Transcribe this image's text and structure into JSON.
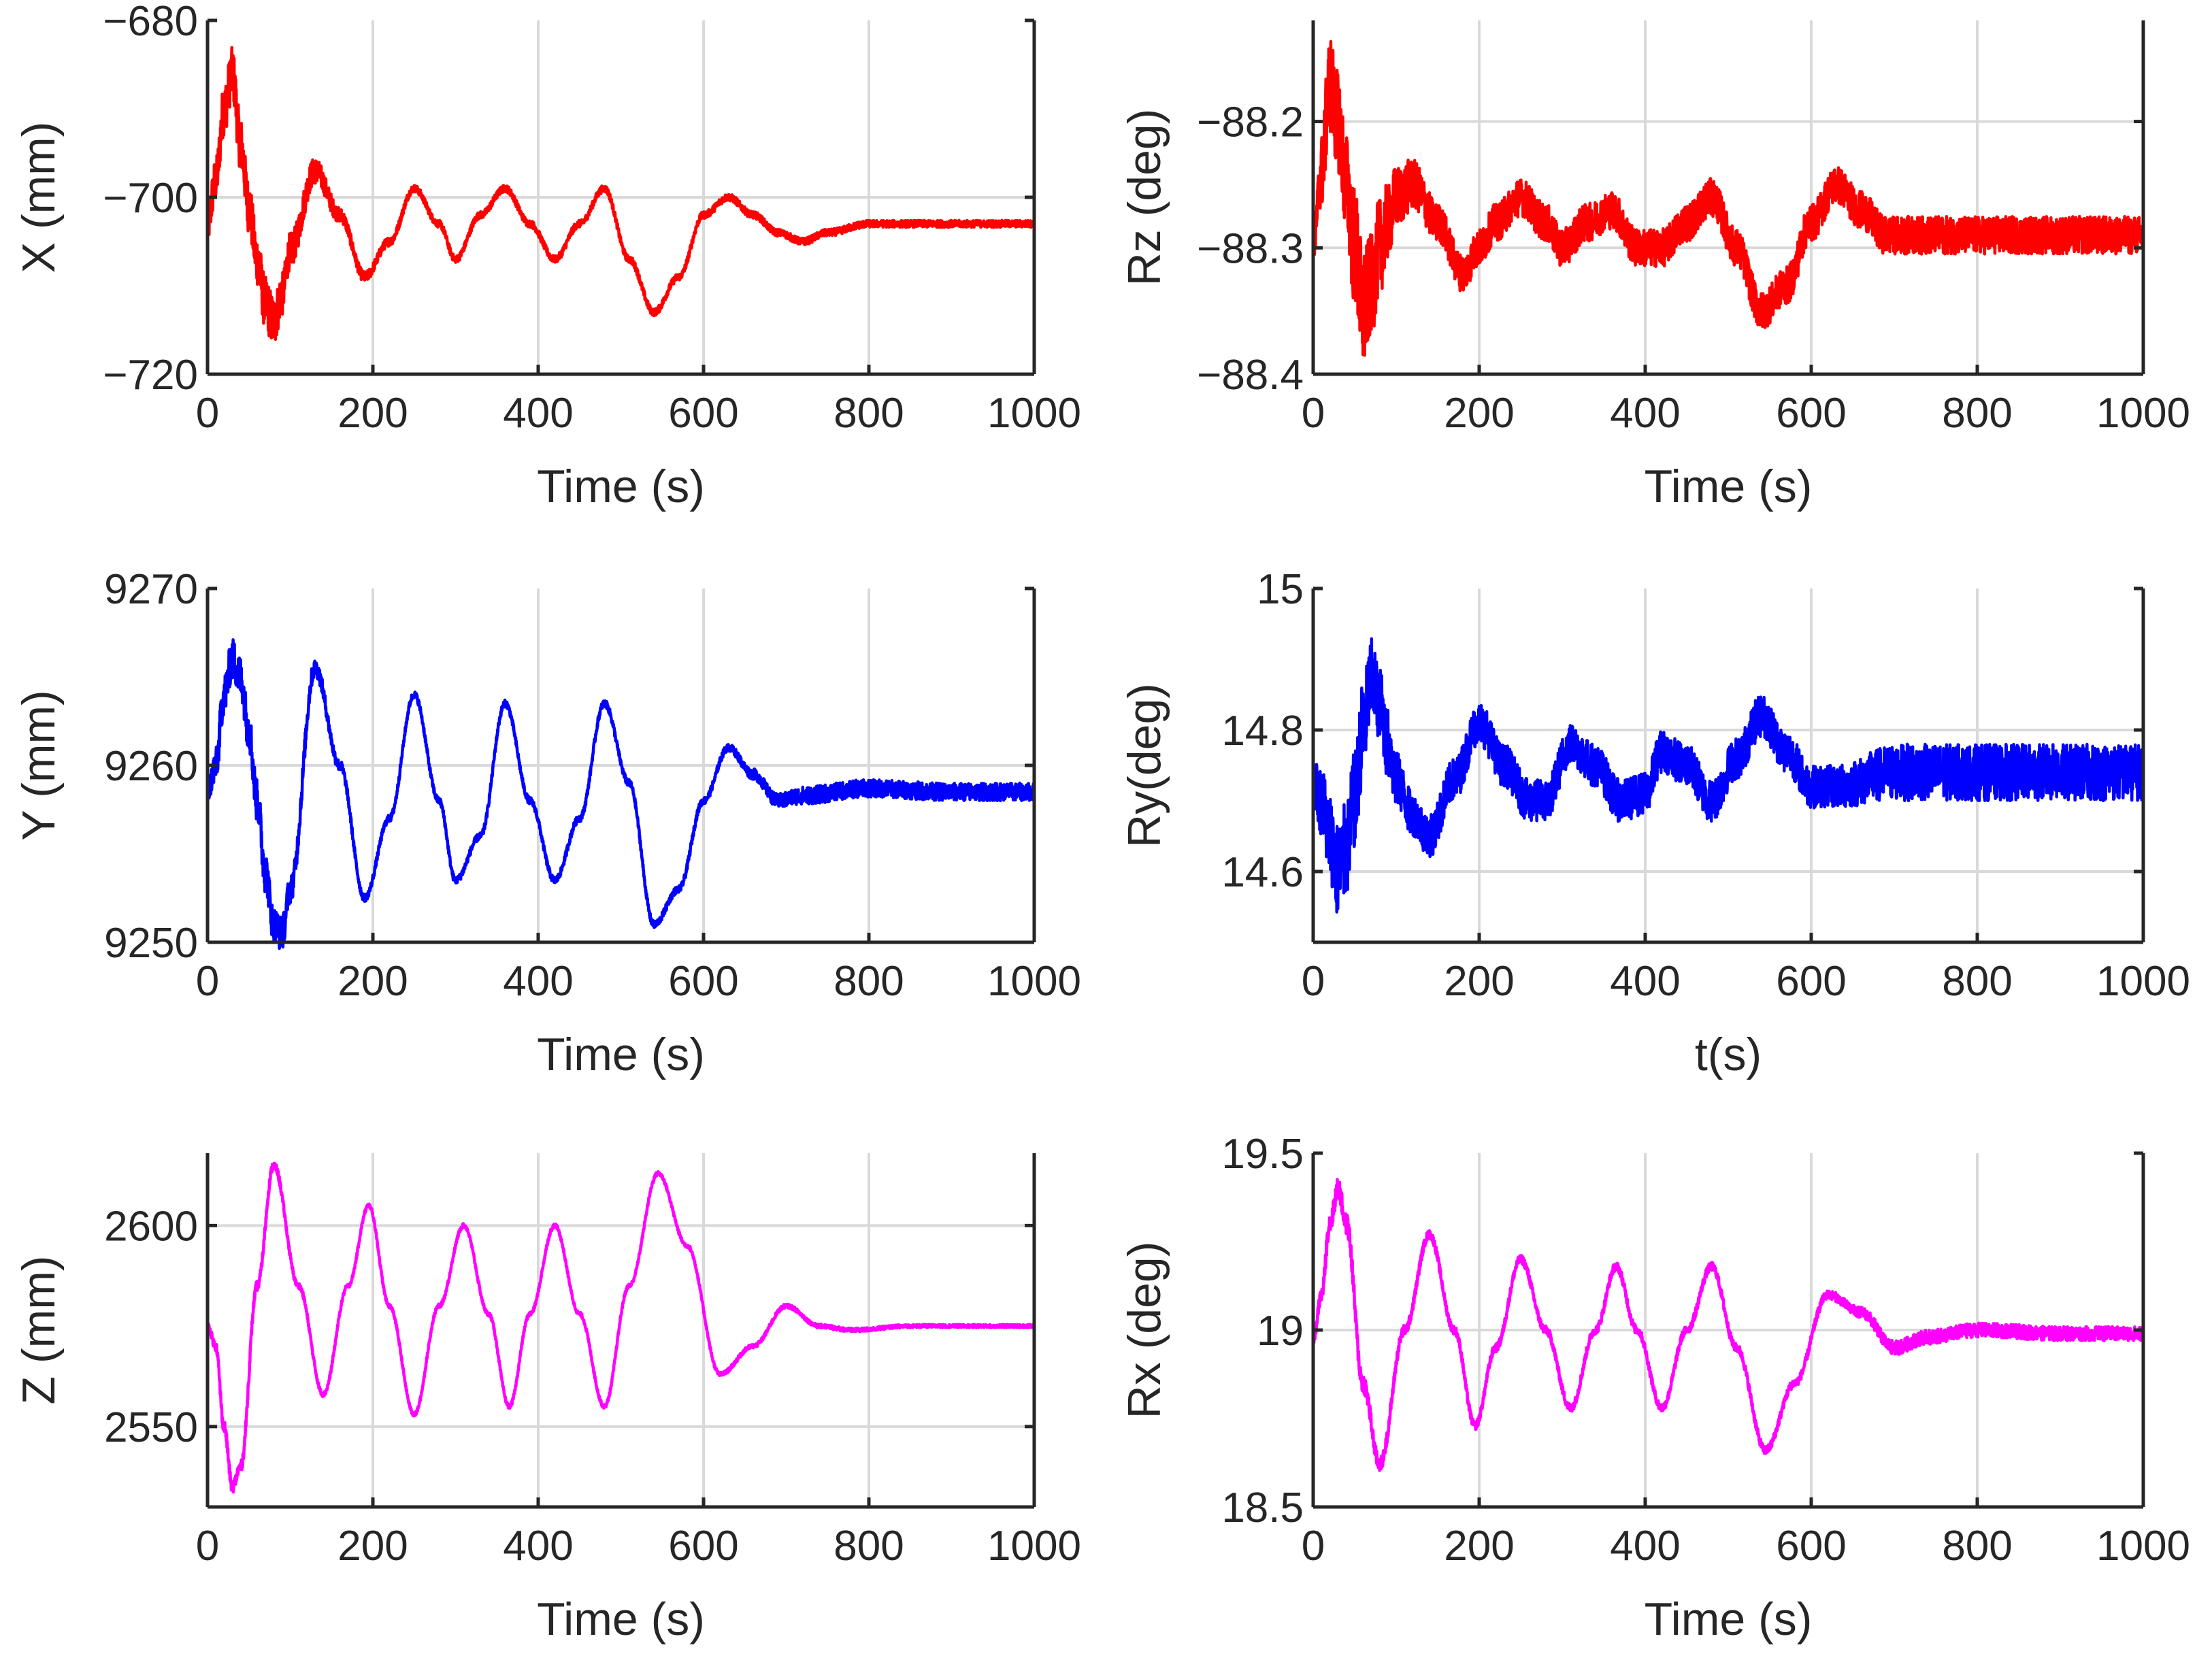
{
  "chart_data": [
    {
      "type": "line",
      "position": "top-left",
      "xlabel": "Time (s)",
      "ylabel": "X (mm)",
      "xlim": [
        0,
        1000
      ],
      "ylim": [
        -720,
        -680
      ],
      "xticks": [
        0,
        200,
        400,
        600,
        800,
        1000
      ],
      "yticks": [
        -720,
        -700,
        -680
      ],
      "ytick_labels": [
        "−720",
        "−700",
        "−680"
      ],
      "grid": true,
      "series": [
        {
          "name": "X",
          "color": "#ff0000",
          "x": [
            0,
            10,
            20,
            30,
            40,
            50,
            60,
            70,
            80,
            90,
            100,
            130,
            160,
            190,
            220,
            250,
            280,
            300,
            330,
            360,
            390,
            420,
            450,
            480,
            510,
            540,
            570,
            600,
            630,
            660,
            690,
            720,
            750,
            800,
            850,
            900,
            1000
          ],
          "y": [
            -703,
            -698,
            -690,
            -686,
            -694,
            -701,
            -707,
            -712,
            -714,
            -711,
            -706,
            -697,
            -702,
            -709,
            -705,
            -699,
            -703,
            -707,
            -702,
            -699,
            -703,
            -707,
            -703,
            -699,
            -707,
            -713,
            -709,
            -702,
            -700,
            -702,
            -704,
            -705,
            -704,
            -703,
            -703,
            -703,
            -703
          ],
          "noise": [
            2.5,
            2.5,
            3,
            3,
            3,
            3,
            3,
            3,
            3,
            2.5,
            2,
            1.5,
            0.8,
            0.6,
            0.5,
            0.4,
            0.4,
            0.4,
            0.4,
            0.4,
            0.4,
            0.4,
            0.4,
            0.4,
            0.4,
            0.4,
            0.4,
            0.4,
            0.4,
            0.4,
            0.4,
            0.4,
            0.4,
            0.4,
            0.4,
            0.4,
            0.4
          ]
        }
      ]
    },
    {
      "type": "line",
      "position": "top-right",
      "xlabel": "Time (s)",
      "ylabel": "Rz (deg)",
      "xlim": [
        0,
        1000
      ],
      "ylim": [
        -88.4,
        -88.12
      ],
      "xticks": [
        0,
        200,
        400,
        600,
        800,
        1000
      ],
      "yticks": [
        -88.4,
        -88.3,
        -88.2
      ],
      "ytick_labels": [
        "−88.4",
        "−88.3",
        "−88.2"
      ],
      "grid": true,
      "series": [
        {
          "name": "Rz",
          "color": "#ff0000",
          "x": [
            0,
            10,
            20,
            30,
            40,
            50,
            60,
            70,
            80,
            90,
            100,
            120,
            150,
            180,
            200,
            220,
            250,
            280,
            300,
            330,
            360,
            390,
            420,
            450,
            480,
            510,
            540,
            570,
            600,
            630,
            660,
            690,
            720,
            800,
            900,
            1000
          ],
          "y": [
            -88.3,
            -88.24,
            -88.17,
            -88.2,
            -88.25,
            -88.3,
            -88.35,
            -88.33,
            -88.3,
            -88.28,
            -88.26,
            -88.25,
            -88.28,
            -88.32,
            -88.3,
            -88.28,
            -88.26,
            -88.28,
            -88.3,
            -88.28,
            -88.27,
            -88.3,
            -88.3,
            -88.28,
            -88.26,
            -88.3,
            -88.35,
            -88.33,
            -88.28,
            -88.25,
            -88.27,
            -88.29,
            -88.29,
            -88.29,
            -88.29,
            -88.29
          ],
          "noise": [
            0.01,
            0.03,
            0.04,
            0.04,
            0.04,
            0.05,
            0.05,
            0.04,
            0.04,
            0.03,
            0.025,
            0.02,
            0.015,
            0.015,
            0.015,
            0.015,
            0.015,
            0.015,
            0.015,
            0.015,
            0.015,
            0.015,
            0.015,
            0.015,
            0.015,
            0.015,
            0.015,
            0.015,
            0.015,
            0.015,
            0.015,
            0.015,
            0.015,
            0.015,
            0.015,
            0.015
          ]
        }
      ]
    },
    {
      "type": "line",
      "position": "middle-left",
      "xlabel": "Time (s)",
      "ylabel": "Y (mm)",
      "xlim": [
        0,
        1000
      ],
      "ylim": [
        9250,
        9270
      ],
      "xticks": [
        0,
        200,
        400,
        600,
        800,
        1000
      ],
      "yticks": [
        9250,
        9260,
        9270
      ],
      "ytick_labels": [
        "9250",
        "9260",
        "9270"
      ],
      "grid": true,
      "series": [
        {
          "name": "Y",
          "color": "#0000ff",
          "x": [
            0,
            10,
            20,
            30,
            40,
            50,
            60,
            70,
            80,
            90,
            100,
            130,
            160,
            190,
            220,
            250,
            280,
            300,
            330,
            360,
            390,
            420,
            450,
            480,
            510,
            540,
            570,
            600,
            630,
            660,
            690,
            720,
            800,
            900,
            1000
          ],
          "y": [
            9258.5,
            9260,
            9264,
            9266,
            9265,
            9262,
            9258,
            9254,
            9251,
            9250.5,
            9253,
            9265.5,
            9260,
            9252.5,
            9257,
            9264,
            9258,
            9253.5,
            9256,
            9263.5,
            9258,
            9253.5,
            9257,
            9263.5,
            9259,
            9251,
            9253,
            9258,
            9261,
            9259.5,
            9258,
            9258.3,
            9258.7,
            9258.5,
            9258.5
          ],
          "noise": [
            0.6,
            1,
            1.2,
            1.2,
            1.2,
            1.2,
            1.2,
            1.2,
            1,
            1,
            0.8,
            0.5,
            0.3,
            0.2,
            0.2,
            0.2,
            0.2,
            0.2,
            0.2,
            0.2,
            0.2,
            0.2,
            0.2,
            0.2,
            0.2,
            0.2,
            0.2,
            0.2,
            0.2,
            0.3,
            0.4,
            0.5,
            0.5,
            0.5,
            0.5
          ]
        }
      ]
    },
    {
      "type": "line",
      "position": "middle-right",
      "xlabel": "t(s)",
      "ylabel": "Ry(deg)",
      "xlim": [
        0,
        1000
      ],
      "ylim": [
        14.5,
        15
      ],
      "xticks": [
        0,
        200,
        400,
        600,
        800,
        1000
      ],
      "yticks": [
        14.6,
        14.8,
        15
      ],
      "ytick_labels": [
        "14.6",
        "14.8",
        "15"
      ],
      "grid": true,
      "series": [
        {
          "name": "Ry",
          "color": "#0000ff",
          "x": [
            0,
            10,
            20,
            30,
            40,
            50,
            60,
            70,
            80,
            90,
            100,
            120,
            140,
            170,
            200,
            230,
            260,
            280,
            310,
            340,
            370,
            400,
            420,
            450,
            480,
            510,
            540,
            570,
            600,
            630,
            700,
            800,
            900,
            1000
          ],
          "y": [
            14.73,
            14.7,
            14.65,
            14.6,
            14.63,
            14.7,
            14.8,
            14.87,
            14.84,
            14.78,
            14.73,
            14.68,
            14.65,
            14.73,
            14.81,
            14.75,
            14.7,
            14.7,
            14.78,
            14.75,
            14.7,
            14.71,
            14.77,
            14.75,
            14.7,
            14.76,
            14.82,
            14.77,
            14.72,
            14.72,
            14.74,
            14.74,
            14.74,
            14.74
          ],
          "noise": [
            0.03,
            0.05,
            0.06,
            0.07,
            0.07,
            0.07,
            0.07,
            0.06,
            0.05,
            0.05,
            0.04,
            0.03,
            0.03,
            0.03,
            0.03,
            0.03,
            0.03,
            0.03,
            0.03,
            0.03,
            0.03,
            0.03,
            0.03,
            0.03,
            0.03,
            0.03,
            0.03,
            0.03,
            0.03,
            0.03,
            0.04,
            0.04,
            0.04,
            0.04
          ]
        }
      ]
    },
    {
      "type": "line",
      "position": "bottom-left",
      "xlabel": "Time (s)",
      "ylabel": "Z (mm)",
      "xlim": [
        0,
        1000
      ],
      "ylim": [
        2530,
        2618
      ],
      "xticks": [
        0,
        200,
        400,
        600,
        800,
        1000
      ],
      "yticks": [
        2550,
        2600
      ],
      "ytick_labels": [
        "2550",
        "2600"
      ],
      "grid": true,
      "series": [
        {
          "name": "Z",
          "color": "#ff00ff",
          "x": [
            0,
            10,
            20,
            30,
            40,
            60,
            80,
            110,
            140,
            170,
            195,
            220,
            250,
            280,
            310,
            340,
            365,
            390,
            420,
            450,
            480,
            510,
            545,
            580,
            620,
            660,
            700,
            740,
            780,
            850,
            1000
          ],
          "y": [
            2575,
            2570,
            2550,
            2535,
            2540,
            2585,
            2615,
            2585,
            2558,
            2585,
            2605,
            2580,
            2553,
            2580,
            2600,
            2578,
            2555,
            2578,
            2600,
            2578,
            2555,
            2585,
            2613,
            2595,
            2563,
            2570,
            2580,
            2575,
            2574,
            2575,
            2575
          ],
          "noise": [
            0.8,
            1.2,
            1.5,
            1.5,
            1.5,
            1.2,
            1,
            0.7,
            0.6,
            0.5,
            0.5,
            0.5,
            0.5,
            0.5,
            0.5,
            0.5,
            0.5,
            0.5,
            0.5,
            0.5,
            0.5,
            0.5,
            0.5,
            0.5,
            0.5,
            0.5,
            0.5,
            0.5,
            0.5,
            0.4,
            0.4
          ]
        }
      ]
    },
    {
      "type": "line",
      "position": "bottom-right",
      "xlabel": "Time (s)",
      "ylabel": "Rx (deg)",
      "xlim": [
        0,
        1000
      ],
      "ylim": [
        18.5,
        19.5
      ],
      "xticks": [
        0,
        200,
        400,
        600,
        800,
        1000
      ],
      "yticks": [
        18.5,
        19,
        19.5
      ],
      "ytick_labels": [
        "18.5",
        "19",
        "19.5"
      ],
      "grid": true,
      "series": [
        {
          "name": "Rx",
          "color": "#ff00ff",
          "x": [
            0,
            10,
            20,
            30,
            40,
            60,
            80,
            110,
            140,
            170,
            195,
            220,
            250,
            280,
            310,
            340,
            365,
            390,
            420,
            450,
            480,
            510,
            545,
            580,
            620,
            660,
            700,
            740,
            800,
            900,
            1000
          ],
          "y": [
            18.97,
            19.1,
            19.3,
            19.4,
            19.3,
            18.85,
            18.62,
            19.0,
            19.27,
            19.0,
            18.73,
            18.95,
            19.2,
            19.0,
            18.78,
            19.0,
            19.18,
            19.0,
            18.78,
            19.0,
            19.18,
            18.95,
            18.66,
            18.85,
            19.1,
            19.05,
            18.95,
            18.98,
            19.0,
            18.99,
            18.99
          ],
          "noise": [
            0.01,
            0.02,
            0.03,
            0.03,
            0.03,
            0.03,
            0.02,
            0.015,
            0.012,
            0.012,
            0.012,
            0.012,
            0.012,
            0.012,
            0.012,
            0.012,
            0.012,
            0.012,
            0.012,
            0.012,
            0.012,
            0.012,
            0.012,
            0.012,
            0.012,
            0.015,
            0.02,
            0.02,
            0.02,
            0.02,
            0.02
          ]
        }
      ]
    }
  ]
}
